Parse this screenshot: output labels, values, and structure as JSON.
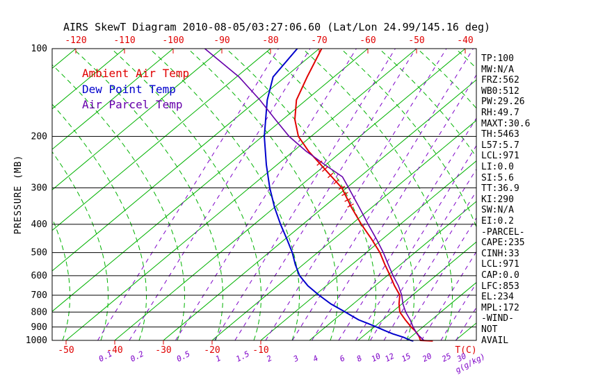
{
  "title": "AIRS SkewT Diagram 2010-08-05/03:27:06.60 (Lat/Lon 24.99/145.16 deg)",
  "colors": {
    "ambient": "#e00000",
    "dewpoint": "#0000cc",
    "parcel": "#6600aa",
    "grid_green": "#00b200",
    "mixing_purple": "#7d00c8",
    "axis_black": "#000000"
  },
  "legend": {
    "items": [
      {
        "id": "ambient",
        "label": "Ambient Air Temp"
      },
      {
        "id": "dewpoint",
        "label": "Dew Point Temp"
      },
      {
        "id": "parcel",
        "label": "Air Parcel Temp"
      }
    ]
  },
  "axes": {
    "pressure_label": "PRESSURE (MB)",
    "pressure_ticks": [
      100,
      200,
      300,
      400,
      500,
      600,
      700,
      800,
      900,
      1000
    ],
    "top_temp_ticks": [
      -120,
      -110,
      -100,
      -90,
      -80,
      -70,
      -60,
      -50,
      -40
    ],
    "bottom_temp_ticks": [
      -50,
      -40,
      -30,
      -20,
      -10
    ],
    "temp_unit": "T(C)",
    "mixing_unit": "g(g/kg)",
    "mixing_ratio_lines": [
      {
        "label": "0.1",
        "t1000": -43.5
      },
      {
        "label": "0.2",
        "t1000": -37.0
      },
      {
        "label": "0.5",
        "t1000": -27.5
      },
      {
        "label": "1",
        "t1000": -19.5
      },
      {
        "label": "1.5",
        "t1000": -15.3
      },
      {
        "label": "2",
        "t1000": -9.0
      },
      {
        "label": "3",
        "t1000": -3.5
      },
      {
        "label": "4",
        "t1000": 0.5
      },
      {
        "label": "6",
        "t1000": 6.0
      },
      {
        "label": "8",
        "t1000": 9.5
      },
      {
        "label": "10",
        "t1000": 12.5
      },
      {
        "label": "12",
        "t1000": 15.3
      },
      {
        "label": "15",
        "t1000": 18.7
      },
      {
        "label": "20",
        "t1000": 23.0
      },
      {
        "label": "25",
        "t1000": 27.0
      },
      {
        "label": "30",
        "t1000": 30.1
      }
    ]
  },
  "stats": [
    "TP:100",
    "MW:N/A",
    "FRZ:562",
    "WB0:512",
    "PW:29.26",
    "RH:49.7",
    "MAXT:30.6",
    "TH:5463",
    "L57:5.7",
    "LCL:971",
    "LI:0.0",
    "SI:5.6",
    "TT:36.9",
    "KI:290",
    "SW:N/A",
    "EI:0.2",
    "-PARCEL-",
    "CAPE:235",
    "CINH:33",
    "LCL:971",
    "CAP:0.0",
    "LFC:853",
    "EL:234",
    "MPL:172",
    "-WIND-",
    "NOT",
    "AVAIL"
  ],
  "chart_data": {
    "type": "line",
    "title": "AIRS SkewT Diagram 2010-08-05/03:27:06.60 (Lat/Lon 24.99/145.16 deg)",
    "xlabel": "Temperature (C)",
    "ylabel": "Pressure (MB)",
    "y_scale": "log",
    "ylim": [
      1005,
      100
    ],
    "skew": "isotherms skewed 45 degrees, grid of isotherms (green solid), moist adiabats (green dashed), mixing ratio lines (purple dashed)",
    "hatch_pressures": [
      345,
      330,
      315,
      300,
      286,
      272,
      259,
      247
    ],
    "series": [
      {
        "name": "Ambient Air Temp",
        "color_key": "ambient",
        "points_pressure_temp": [
          [
            1005,
            25.5
          ],
          [
            1000,
            22.8
          ],
          [
            975,
            21.8
          ],
          [
            950,
            20.6
          ],
          [
            925,
            19.2
          ],
          [
            900,
            17.6
          ],
          [
            850,
            14.6
          ],
          [
            800,
            11.6
          ],
          [
            750,
            9.4
          ],
          [
            700,
            7.4
          ],
          [
            650,
            4.0
          ],
          [
            600,
            0.6
          ],
          [
            550,
            -3.2
          ],
          [
            500,
            -7.2
          ],
          [
            450,
            -12.2
          ],
          [
            400,
            -18.0
          ],
          [
            350,
            -24.2
          ],
          [
            300,
            -31.0
          ],
          [
            275,
            -35.8
          ],
          [
            250,
            -41.0
          ],
          [
            225,
            -46.8
          ],
          [
            200,
            -52.6
          ],
          [
            175,
            -57.5
          ],
          [
            150,
            -62.0
          ],
          [
            125,
            -65.5
          ],
          [
            100,
            -69.5
          ]
        ]
      },
      {
        "name": "Dew Point Temp",
        "color_key": "dewpoint",
        "points_pressure_temp": [
          [
            1005,
            21.5
          ],
          [
            1000,
            20.8
          ],
          [
            975,
            18.5
          ],
          [
            950,
            15.5
          ],
          [
            925,
            13.0
          ],
          [
            900,
            10.5
          ],
          [
            875,
            7.8
          ],
          [
            850,
            5.0
          ],
          [
            800,
            0.4
          ],
          [
            750,
            -4.6
          ],
          [
            700,
            -9.2
          ],
          [
            650,
            -13.8
          ],
          [
            600,
            -18.0
          ],
          [
            550,
            -21.6
          ],
          [
            500,
            -25.2
          ],
          [
            450,
            -29.6
          ],
          [
            400,
            -34.6
          ],
          [
            350,
            -40.0
          ],
          [
            300,
            -45.8
          ],
          [
            250,
            -52.2
          ],
          [
            200,
            -59.6
          ],
          [
            175,
            -63.5
          ],
          [
            150,
            -68.0
          ],
          [
            125,
            -72.5
          ],
          [
            100,
            -74.5
          ]
        ]
      },
      {
        "name": "Air Parcel Temp",
        "color_key": "parcel",
        "points_pressure_temp": [
          [
            1000,
            23.5
          ],
          [
            950,
            20.5
          ],
          [
            900,
            18.0
          ],
          [
            850,
            15.6
          ],
          [
            800,
            12.8
          ],
          [
            750,
            10.2
          ],
          [
            700,
            7.8
          ],
          [
            650,
            4.8
          ],
          [
            600,
            1.2
          ],
          [
            550,
            -2.5
          ],
          [
            500,
            -6.5
          ],
          [
            450,
            -11.2
          ],
          [
            400,
            -16.6
          ],
          [
            350,
            -22.6
          ],
          [
            300,
            -29.6
          ],
          [
            275,
            -33.6
          ],
          [
            250,
            -40.2
          ],
          [
            234,
            -44.6
          ],
          [
            225,
            -47.3
          ],
          [
            200,
            -54.5
          ],
          [
            175,
            -61.5
          ],
          [
            150,
            -69.5
          ],
          [
            125,
            -79.5
          ],
          [
            100,
            -93.5
          ]
        ]
      }
    ]
  }
}
